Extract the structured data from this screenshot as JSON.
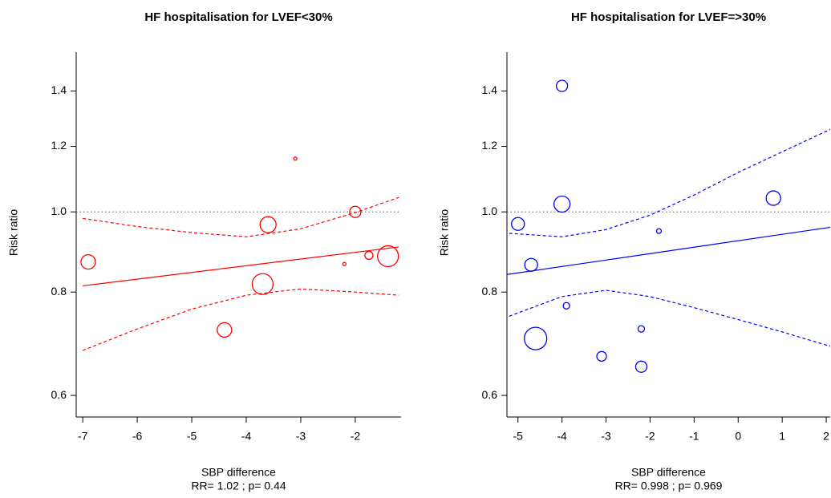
{
  "chart_data": [
    {
      "type": "scatter",
      "title": "HF hospitalisation for LVEF<30%",
      "xlabel": "SBP difference",
      "ylabel": "Risk ratio",
      "subtitle": "RR= 1.02 ; p= 0.44",
      "color": "#ff0000",
      "log_y": true,
      "x": [
        -6.9,
        -4.4,
        -3.7,
        -3.6,
        -3.1,
        -2.2,
        -2.0,
        -1.75,
        -1.4
      ],
      "values": [
        0.87,
        0.72,
        0.818,
        0.965,
        1.16,
        0.865,
        1.0,
        0.886,
        0.884
      ],
      "sizes": [
        9,
        9,
        13,
        10,
        2,
        2,
        7,
        5,
        13
      ],
      "xlim": [
        -7.12,
        -1.16
      ],
      "ylim": [
        0.565,
        1.56
      ],
      "xticks": [
        -7,
        -6,
        -5,
        -4,
        -3,
        -2
      ],
      "yticks": [
        0.6,
        0.8,
        {
          "value": 1,
          "label": "1.0"
        },
        1.2,
        1.4
      ],
      "reference_line": 1,
      "fit": {
        "x": [
          -7,
          -1.2
        ],
        "values": [
          0.814,
          0.907
        ]
      },
      "ci_upper": {
        "x": [
          -7,
          -6,
          -5,
          -4,
          -3,
          -2,
          -1.2
        ],
        "values": [
          0.982,
          0.96,
          0.944,
          0.933,
          0.954,
          0.998,
          1.041
        ]
      },
      "ci_lower": {
        "x": [
          -7,
          -6,
          -5,
          -4,
          -3,
          -2,
          -1.2
        ],
        "values": [
          0.68,
          0.722,
          0.763,
          0.793,
          0.807,
          0.8,
          0.793
        ]
      }
    },
    {
      "type": "scatter",
      "title": "HF hospitalisation for LVEF=>30%",
      "xlabel": "SBP difference",
      "ylabel": "Risk ratio",
      "subtitle": "RR= 0.998 ; p= 0.969",
      "color": "#0000ff",
      "log_y": true,
      "x": [
        -5.0,
        -4.7,
        -4.6,
        -4.0,
        -4.0,
        -3.9,
        -3.1,
        -2.2,
        -2.2,
        -1.8,
        0.8
      ],
      "values": [
        0.967,
        0.863,
        0.703,
        1.42,
        1.022,
        0.77,
        0.669,
        0.722,
        0.65,
        0.948,
        1.039
      ],
      "sizes": [
        8,
        8,
        14,
        7,
        10,
        4,
        6,
        4,
        7,
        3,
        9
      ],
      "xlim": [
        -5.25,
        2.09
      ],
      "ylim": [
        0.565,
        1.56
      ],
      "xticks": [
        -5,
        -4,
        -3,
        -2,
        -1,
        0,
        1,
        2
      ],
      "yticks": [
        0.6,
        0.8,
        {
          "value": 1,
          "label": "1.0"
        },
        1.2,
        1.4
      ],
      "reference_line": 1,
      "fit": {
        "x": [
          -5.25,
          2.09
        ],
        "values": [
          0.84,
          0.958
        ]
      },
      "ci_upper": {
        "x": [
          -5.2,
          -4,
          -3,
          -2,
          -1,
          0,
          1,
          2.09
        ],
        "values": [
          0.942,
          0.933,
          0.952,
          0.991,
          1.048,
          1.116,
          1.182,
          1.258
        ]
      },
      "ci_lower": {
        "x": [
          -5.2,
          -4,
          -3,
          -2,
          -1,
          0,
          1,
          2.09
        ],
        "values": [
          0.748,
          0.79,
          0.804,
          0.79,
          0.766,
          0.741,
          0.716,
          0.688
        ]
      }
    }
  ]
}
